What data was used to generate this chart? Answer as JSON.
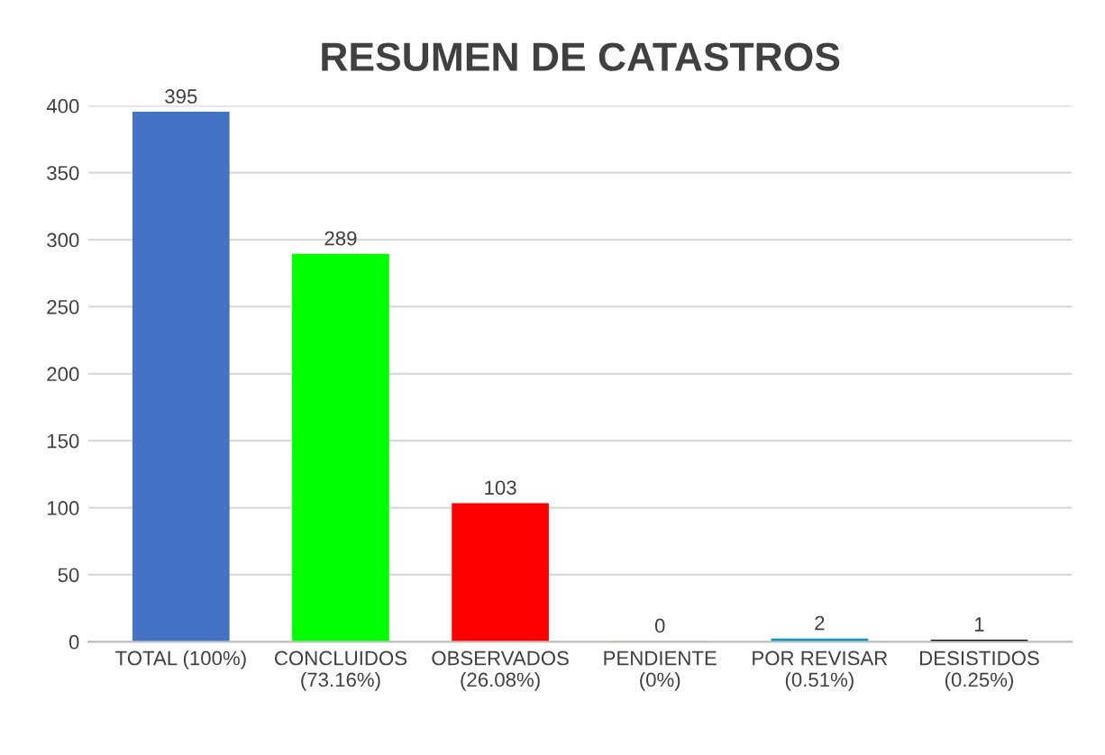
{
  "chart_data": {
    "type": "bar",
    "title": "RESUMEN DE CATASTROS",
    "categories": [
      "TOTAL (100%)",
      "CONCLUIDOS\n(73.16%)",
      "OBSERVADOS\n(26.08%)",
      "PENDIENTE\n(0%)",
      "POR REVISAR\n(0.51%)",
      "DESISTIDOS\n(0.25%)"
    ],
    "values": [
      395,
      289,
      103,
      0,
      2,
      1
    ],
    "colors": [
      "#4472c4",
      "#00ff00",
      "#ff0000",
      "#c8c800",
      "#0099cc",
      "#000000"
    ],
    "ylim": [
      0,
      400
    ],
    "yticks": [
      0,
      50,
      100,
      150,
      200,
      250,
      300,
      350,
      400
    ],
    "grid": "y",
    "data_labels": true
  }
}
